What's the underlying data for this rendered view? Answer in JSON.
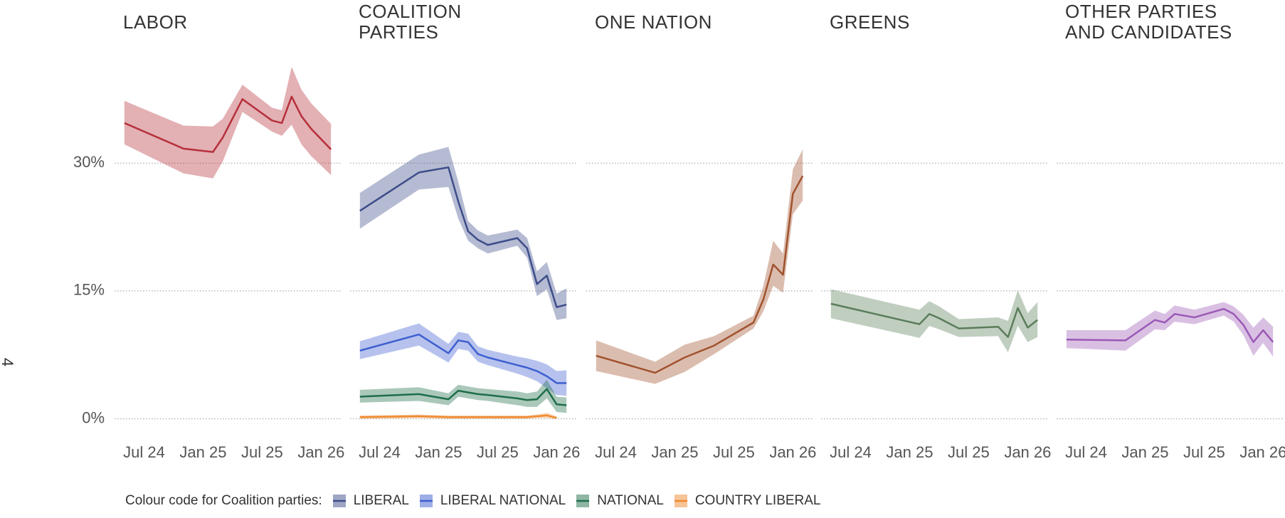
{
  "side_label": "4",
  "legend_title": "Colour code for Coalition parties:",
  "chart_data": [
    {
      "type": "line",
      "title": "LABOR",
      "color": "#b5303a",
      "x": [
        "2024-05",
        "2024-11",
        "2025-02",
        "2025-03",
        "2025-05",
        "2025-08",
        "2025-09",
        "2025-10",
        "2025-11",
        "2025-12",
        "2026-02"
      ],
      "values": [
        34.7,
        31.7,
        31.3,
        33.0,
        37.5,
        35.0,
        34.7,
        37.8,
        35.5,
        34.0,
        31.6
      ],
      "lower": [
        32.2,
        28.8,
        28.2,
        30.2,
        36.0,
        33.7,
        33.2,
        34.5,
        32.2,
        30.8,
        28.6
      ],
      "upper": [
        37.3,
        34.4,
        34.3,
        35.2,
        39.2,
        36.5,
        36.2,
        41.3,
        38.6,
        37.0,
        34.6
      ],
      "xlim": [
        "2024-04",
        "2026-03"
      ],
      "xticks": [
        {
          "value": "2024-07",
          "label": "Jul 24"
        },
        {
          "value": "2025-01",
          "label": "Jan 25"
        },
        {
          "value": "2025-07",
          "label": "Jul 25"
        },
        {
          "value": "2026-01",
          "label": "Jan 26"
        }
      ],
      "ylim": [
        -2,
        40
      ],
      "yticks": [
        {
          "value": 0,
          "label": "0%"
        },
        {
          "value": 15,
          "label": "15%"
        },
        {
          "value": 30,
          "label": "30%"
        }
      ],
      "grid": true
    },
    {
      "type": "line",
      "title": "COALITION\nPARTIES",
      "x": [
        "2024-05",
        "2024-11",
        "2025-02",
        "2025-03",
        "2025-04",
        "2025-05",
        "2025-06",
        "2025-09",
        "2025-10",
        "2025-11",
        "2025-12",
        "2026-01",
        "2026-02"
      ],
      "series": [
        {
          "name": "LIBERAL",
          "color": "#3d4d8a",
          "values": [
            24.4,
            28.9,
            29.5,
            25.5,
            22.0,
            21.0,
            20.4,
            21.2,
            20.0,
            15.8,
            16.8,
            13.1,
            13.4
          ],
          "lower": [
            22.3,
            26.9,
            27.2,
            23.5,
            20.9,
            20.0,
            19.4,
            20.3,
            18.9,
            14.4,
            15.2,
            11.6,
            11.8
          ],
          "upper": [
            26.5,
            31.0,
            31.9,
            27.8,
            23.2,
            22.1,
            21.5,
            22.2,
            21.2,
            17.3,
            18.4,
            14.7,
            15.3
          ]
        },
        {
          "name": "LIBERAL NATIONAL",
          "color": "#3e5fd0",
          "values": [
            8.0,
            9.9,
            7.7,
            9.2,
            9.0,
            7.6,
            7.2,
            6.3,
            6.0,
            5.6,
            5.0,
            4.2,
            4.2
          ],
          "lower": [
            7.0,
            8.6,
            6.6,
            8.2,
            8.0,
            6.7,
            6.3,
            5.3,
            4.9,
            4.4,
            3.6,
            2.8,
            2.7
          ],
          "upper": [
            9.1,
            11.2,
            8.8,
            10.2,
            10.0,
            8.5,
            8.1,
            7.3,
            7.1,
            6.8,
            6.4,
            5.6,
            5.7
          ]
        },
        {
          "name": "NATIONAL",
          "color": "#1f6e4a",
          "values": [
            2.6,
            2.9,
            2.3,
            3.3,
            3.1,
            2.9,
            2.8,
            2.4,
            2.2,
            2.3,
            3.5,
            1.7,
            1.6
          ],
          "lower": [
            1.9,
            2.1,
            1.6,
            2.6,
            2.4,
            2.2,
            2.1,
            1.6,
            1.4,
            1.4,
            2.4,
            0.8,
            0.7
          ],
          "upper": [
            3.4,
            3.7,
            3.0,
            4.0,
            3.8,
            3.6,
            3.5,
            3.2,
            3.0,
            3.2,
            4.6,
            2.6,
            2.5
          ]
        },
        {
          "name": "COUNTRY LIBERAL",
          "color": "#ee8a30",
          "values": [
            0.2,
            0.3,
            0.2,
            0.2,
            0.2,
            0.2,
            0.2,
            0.2,
            0.2,
            0.3,
            0.4,
            0.1,
            null
          ],
          "lower": [
            0.0,
            0.1,
            0.0,
            0.0,
            0.0,
            0.0,
            0.0,
            0.0,
            0.0,
            0.1,
            0.1,
            0.0,
            null
          ],
          "upper": [
            0.4,
            0.5,
            0.4,
            0.4,
            0.4,
            0.4,
            0.4,
            0.4,
            0.4,
            0.5,
            0.7,
            0.3,
            null
          ]
        }
      ],
      "xlim": [
        "2024-04",
        "2026-03"
      ],
      "xticks": [
        {
          "value": "2024-07",
          "label": "Jul 24"
        },
        {
          "value": "2025-01",
          "label": "Jan 25"
        },
        {
          "value": "2025-07",
          "label": "Jul 25"
        },
        {
          "value": "2026-01",
          "label": "Jan 26"
        }
      ],
      "ylim": [
        -2,
        40
      ],
      "yticks": [
        0,
        15,
        30
      ],
      "grid": true
    },
    {
      "type": "line",
      "title": "ONE NATION",
      "color": "#a0522d",
      "x": [
        "2024-05",
        "2024-11",
        "2025-02",
        "2025-05",
        "2025-09",
        "2025-10",
        "2025-11",
        "2025-12",
        "2026-01",
        "2026-02"
      ],
      "values": [
        7.4,
        5.4,
        7.2,
        8.6,
        11.3,
        14.0,
        18.1,
        16.9,
        26.4,
        28.5
      ],
      "lower": [
        5.6,
        4.1,
        5.5,
        7.6,
        10.6,
        12.6,
        15.6,
        14.8,
        24.0,
        25.6
      ],
      "upper": [
        9.2,
        6.7,
        8.7,
        9.7,
        12.1,
        15.6,
        20.9,
        19.4,
        29.3,
        31.6
      ],
      "xlim": [
        "2024-04",
        "2026-03"
      ],
      "xticks": [
        {
          "value": "2024-07",
          "label": "Jul 24"
        },
        {
          "value": "2025-01",
          "label": "Jan 25"
        },
        {
          "value": "2025-07",
          "label": "Jul 25"
        },
        {
          "value": "2026-01",
          "label": "Jan 26"
        }
      ],
      "ylim": [
        -2,
        40
      ],
      "yticks": [
        0,
        15,
        30
      ],
      "grid": true
    },
    {
      "type": "line",
      "title": "GREENS",
      "color": "#5a7d5a",
      "x": [
        "2024-05",
        "2025-02",
        "2025-03",
        "2025-04",
        "2025-06",
        "2025-10",
        "2025-11",
        "2025-12",
        "2026-01",
        "2026-02"
      ],
      "values": [
        13.5,
        11.1,
        12.3,
        11.8,
        10.6,
        10.8,
        9.6,
        13.0,
        10.7,
        11.6
      ],
      "lower": [
        11.8,
        9.5,
        10.9,
        10.5,
        9.6,
        9.7,
        7.8,
        10.9,
        9.0,
        9.6
      ],
      "upper": [
        15.2,
        12.8,
        13.8,
        13.2,
        11.7,
        11.9,
        11.5,
        15.1,
        12.4,
        13.7
      ],
      "xlim": [
        "2024-04",
        "2026-03"
      ],
      "xticks": [
        {
          "value": "2024-07",
          "label": "Jul 24"
        },
        {
          "value": "2025-01",
          "label": "Jan 25"
        },
        {
          "value": "2025-07",
          "label": "Jul 25"
        },
        {
          "value": "2026-01",
          "label": "Jan 26"
        }
      ],
      "ylim": [
        -2,
        40
      ],
      "yticks": [
        0,
        15,
        30
      ],
      "grid": true
    },
    {
      "type": "line",
      "title": "OTHER PARTIES\nAND CANDIDATES",
      "color": "#9b59b6",
      "x": [
        "2024-05",
        "2024-11",
        "2025-02",
        "2025-03",
        "2025-04",
        "2025-06",
        "2025-09",
        "2025-10",
        "2025-11",
        "2025-12",
        "2026-01",
        "2026-02"
      ],
      "values": [
        9.3,
        9.2,
        11.6,
        11.3,
        12.3,
        11.9,
        12.9,
        12.3,
        11.0,
        9.0,
        10.4,
        9.0
      ],
      "lower": [
        8.3,
        8.0,
        10.5,
        10.4,
        11.4,
        11.1,
        12.1,
        11.4,
        9.8,
        7.4,
        8.9,
        7.3
      ],
      "upper": [
        10.4,
        10.4,
        12.7,
        12.3,
        13.3,
        12.8,
        13.7,
        13.2,
        12.2,
        10.7,
        11.9,
        10.8
      ],
      "xlim": [
        "2024-04",
        "2026-03"
      ],
      "xticks": [
        {
          "value": "2024-07",
          "label": "Jul 24"
        },
        {
          "value": "2025-01",
          "label": "Jan 25"
        },
        {
          "value": "2025-07",
          "label": "Jul 25"
        },
        {
          "value": "2026-01",
          "label": "Jan 26"
        }
      ],
      "ylim": [
        -2,
        40
      ],
      "yticks": [
        0,
        15,
        30
      ],
      "grid": true
    }
  ]
}
